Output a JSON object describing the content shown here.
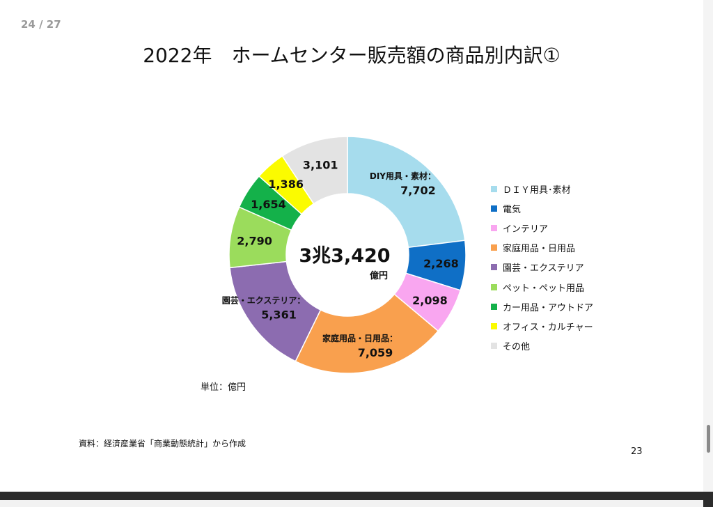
{
  "viewer": {
    "page_counter": "24 / 27"
  },
  "slide": {
    "title": "2022年　ホームセンター販売額の商品別内訳①",
    "unit_note": "単位：億円",
    "source_note": "資料：経済産業省「商業動態統計」から作成",
    "slide_number": "23"
  },
  "chart_data": {
    "type": "pie",
    "donut": true,
    "center_value": "3兆3,420",
    "center_unit": "億円",
    "categories": [
      "ＤＩＹ用具･素材",
      "電気",
      "インテリア",
      "家庭用品・日用品",
      "園芸・エクステリア",
      "ペット・ペット用品",
      "カー用品・アウトドア",
      "オフィス・カルチャー",
      "その他"
    ],
    "values": [
      7702,
      2268,
      2098,
      7059,
      5361,
      2790,
      1654,
      1386,
      3101
    ],
    "value_labels": [
      "7,702",
      "2,268",
      "2,098",
      "7,059",
      "5,361",
      "2,790",
      "1,654",
      "1,386",
      "3,101"
    ],
    "slice_labels": [
      "DIY用具・素材：",
      "",
      "",
      "家庭用品・日用品：",
      "園芸・エクステリア：",
      "",
      "",
      "",
      ""
    ],
    "colors": [
      "#a6dced",
      "#0f6fc6",
      "#f9a6f0",
      "#f9a04e",
      "#8c6cb0",
      "#9bdc5c",
      "#14b14a",
      "#fbfb00",
      "#e3e3e3"
    ],
    "legend_position": "right"
  }
}
